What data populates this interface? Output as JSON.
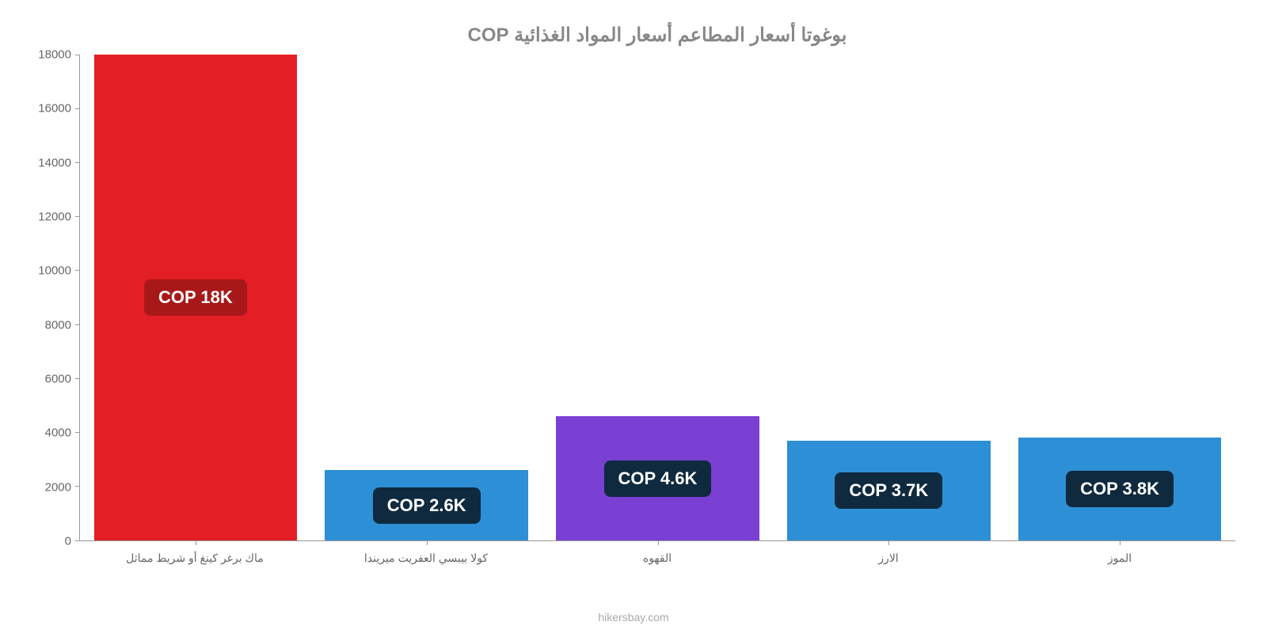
{
  "chart": {
    "type": "bar",
    "title": "بوغوتا أسعار المطاعم أسعار المواد الغذائية COP",
    "title_fontsize": 24,
    "title_color": "#888888",
    "footer": "hikersbay.com",
    "footer_color": "#aaaaaa",
    "background_color": "#ffffff",
    "axis_color": "#999999",
    "tick_font_color": "#666666",
    "tick_fontsize": 15,
    "xlabel_fontsize": 14,
    "ylim": [
      0,
      18000
    ],
    "yticks": [
      0,
      2000,
      4000,
      6000,
      8000,
      10000,
      12000,
      14000,
      16000,
      18000
    ],
    "bar_width_ratio": 0.88,
    "badge": {
      "bg_color": "#0f2a3f",
      "text_color": "#ffffff",
      "fontsize": 22,
      "border_radius": 8
    },
    "bars": [
      {
        "category": "ماك برغر كينغ أو شريط مماثل",
        "value": 18000,
        "label": "COP 18K",
        "color": "#e31e24",
        "badge_bg": "#a81818"
      },
      {
        "category": "كولا بيبسي العفريت ميريندا",
        "value": 2600,
        "label": "COP 2.6K",
        "color": "#2d8fd5",
        "badge_bg": "#0f2a3f"
      },
      {
        "category": "القهوه",
        "value": 4600,
        "label": "COP 4.6K",
        "color": "#7a3fd3",
        "badge_bg": "#0f2a3f"
      },
      {
        "category": "الارز",
        "value": 3700,
        "label": "COP 3.7K",
        "color": "#2d8fd5",
        "badge_bg": "#0f2a3f"
      },
      {
        "category": "الموز",
        "value": 3800,
        "label": "COP 3.8K",
        "color": "#2d8fd5",
        "badge_bg": "#0f2a3f"
      }
    ]
  }
}
